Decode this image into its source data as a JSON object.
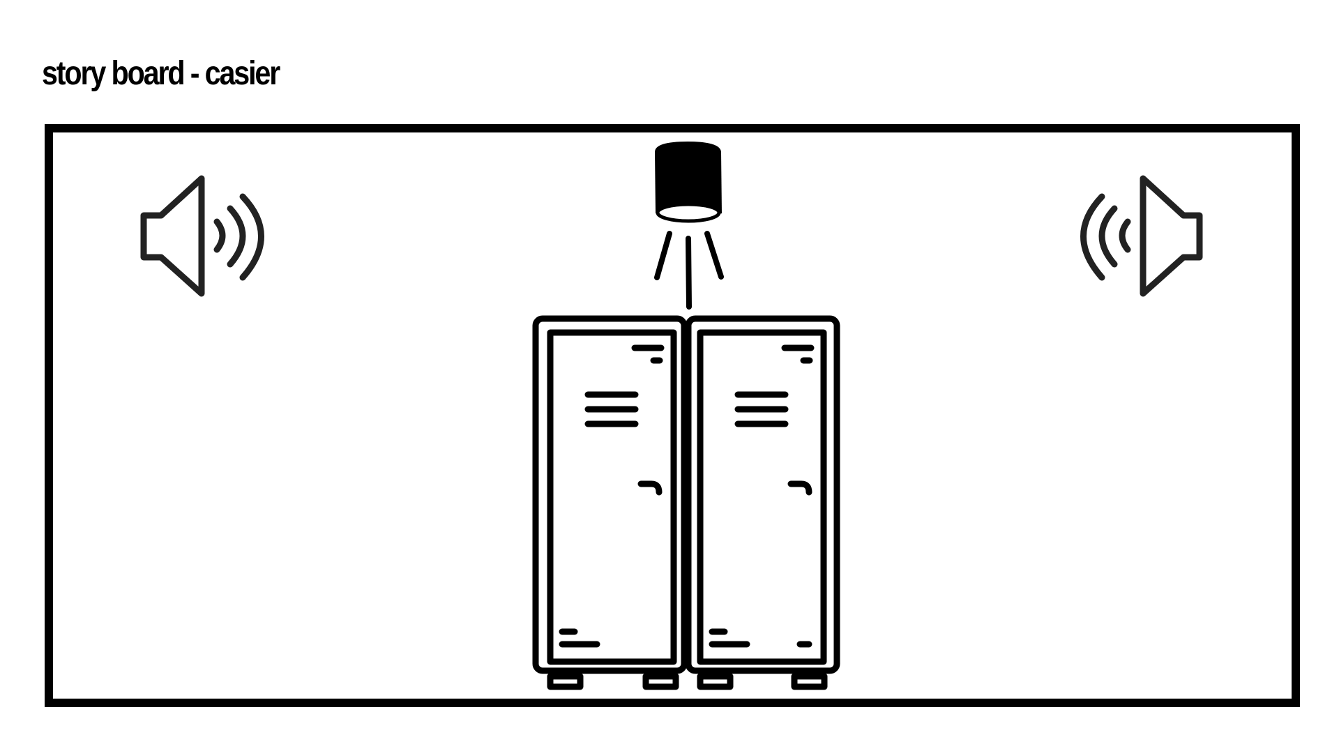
{
  "title": "story board - casier",
  "icons": [
    "speaker-left-icon",
    "ceiling-light-icon",
    "lockers-icon",
    "speaker-right-icon"
  ],
  "colors": {
    "stroke": "#000000",
    "speaker": "#222222",
    "background": "#ffffff"
  }
}
